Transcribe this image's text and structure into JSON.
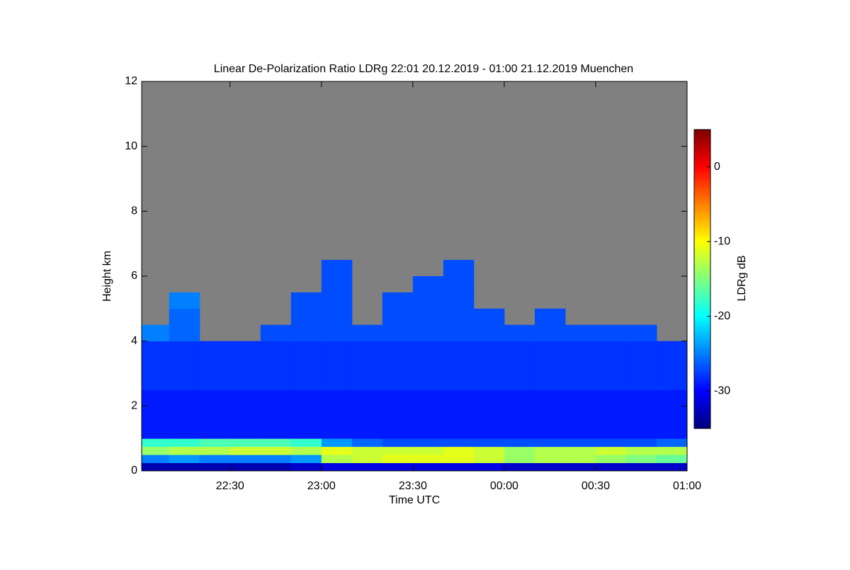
{
  "chart_data": {
    "type": "heatmap",
    "title": "Linear De-Polarization Ratio LDRg   22:01 20.12.2019 - 01:00 21.12.2019 Muenchen",
    "x_label": "Time UTC",
    "y_label": "Height km",
    "colorbar_label": "LDRg dB",
    "xlim": [
      1,
      180
    ],
    "xticks": [
      {
        "value": 30,
        "label": "22:30"
      },
      {
        "value": 60,
        "label": "23:00"
      },
      {
        "value": 90,
        "label": "23:30"
      },
      {
        "value": 120,
        "label": "00:00"
      },
      {
        "value": 150,
        "label": "00:30"
      },
      {
        "value": 180,
        "label": "01:00"
      }
    ],
    "ylim": [
      0,
      12
    ],
    "yticks": [
      0,
      2,
      4,
      6,
      8,
      10,
      12
    ],
    "clim": [
      -35,
      5
    ],
    "cticks": [
      0,
      -10,
      -20,
      -30
    ],
    "colormap": "jet",
    "missing_color": "#808080",
    "x_edges": [
      1,
      10,
      20,
      30,
      40,
      50,
      60,
      70,
      80,
      90,
      100,
      110,
      120,
      130,
      140,
      150,
      160,
      170,
      180
    ],
    "y_edges": [
      0,
      0.25,
      0.5,
      0.75,
      1,
      1.5,
      2,
      2.5,
      3,
      3.5,
      4,
      4.5,
      5,
      5.5,
      6,
      6.5
    ],
    "z": [
      [
        -33,
        -25,
        -14,
        -18,
        -29,
        -29,
        -29,
        -28,
        -28,
        -28,
        -25,
        null,
        null,
        null,
        null
      ],
      [
        -33,
        -24,
        -13,
        -18,
        -29,
        -29,
        -29,
        -28,
        -28,
        -28,
        -26,
        -26,
        -25,
        null,
        null
      ],
      [
        -33,
        -25,
        -13,
        -17,
        -29,
        -29,
        -29,
        -28,
        -28,
        -28,
        null,
        null,
        null,
        null,
        null
      ],
      [
        -33,
        -25,
        -12,
        -17,
        -29,
        -29,
        -29,
        -28,
        -28,
        -28,
        null,
        null,
        null,
        null,
        null
      ],
      [
        -33,
        -25,
        -12,
        -17,
        -29,
        -29,
        -29,
        -28,
        -28,
        -28,
        -27,
        null,
        null,
        null,
        null
      ],
      [
        -32,
        -24,
        -13,
        -18,
        -29,
        -29,
        -29,
        -28,
        -28,
        -28,
        -27,
        -27,
        -27,
        null,
        null
      ],
      [
        -31,
        -13,
        -11,
        -24,
        -29,
        -29,
        -29,
        -28,
        -28,
        -28,
        -27,
        -27,
        -27,
        -27,
        -27
      ],
      [
        -31,
        -12,
        -12,
        -26,
        -29,
        -29,
        -29,
        -28,
        -28,
        -28,
        -27,
        null,
        null,
        null,
        null
      ],
      [
        -31,
        -11,
        -12,
        -27,
        -29,
        -29,
        -29,
        -28,
        -28,
        -28,
        -27,
        -27,
        -27,
        null,
        null
      ],
      [
        -31,
        -11,
        -12,
        -27,
        -29,
        -29,
        -29,
        -28,
        -28,
        -28,
        -27,
        -27,
        -27,
        -27,
        null
      ],
      [
        -31,
        -11,
        -11,
        -27,
        -29,
        -29,
        -29,
        -28,
        -28,
        -28,
        -27,
        -27,
        -27,
        -27,
        -27
      ],
      [
        -31,
        -12,
        -12,
        -27,
        -29,
        -29,
        -29,
        -28,
        -28,
        -28,
        -27,
        -27,
        null,
        null,
        null
      ],
      [
        -32,
        -14,
        -14,
        -27,
        -29,
        -29,
        -29,
        -28,
        -28,
        -28,
        -27,
        null,
        null,
        null,
        null
      ],
      [
        -32,
        -13,
        -13,
        -27,
        -29,
        -29,
        -29,
        -28,
        -28,
        -28,
        -27,
        -27,
        null,
        null,
        null
      ],
      [
        -32,
        -13,
        -13,
        -27,
        -29,
        -29,
        -29,
        -28,
        -28,
        -28,
        -27,
        null,
        null,
        null,
        null
      ],
      [
        -32,
        -14,
        -12,
        -27,
        -29,
        -29,
        -29,
        -28,
        -28,
        -28,
        -27,
        null,
        null,
        null,
        null
      ],
      [
        -32,
        -15,
        -13,
        -27,
        -29,
        -29,
        -29,
        -28,
        -28,
        -28,
        -27,
        null,
        null,
        null,
        null
      ],
      [
        -32,
        -16,
        -13,
        -26,
        -29,
        -29,
        -29,
        -28,
        -28,
        -28,
        null,
        null,
        null,
        null,
        null
      ]
    ]
  }
}
